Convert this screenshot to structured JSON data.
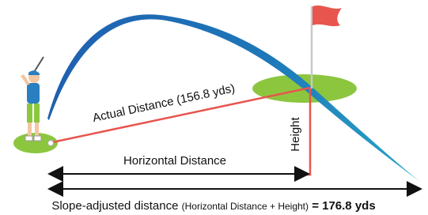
{
  "labels": {
    "actual_distance": "Actual Distance (156.8 yds)",
    "horizontal_distance": "Horizontal Distance",
    "height": "Height",
    "slope_title": "Slope-adjusted distance",
    "slope_formula": "(Horizontal Distance + Height)",
    "slope_result": "= 176.8 yds"
  }
}
